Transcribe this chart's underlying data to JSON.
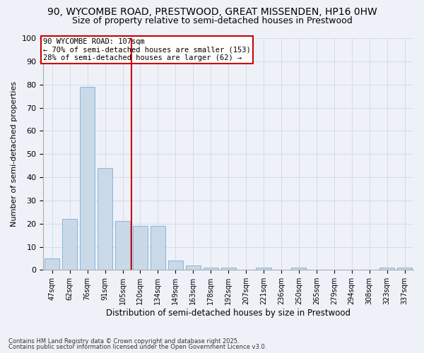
{
  "title1": "90, WYCOMBE ROAD, PRESTWOOD, GREAT MISSENDEN, HP16 0HW",
  "title2": "Size of property relative to semi-detached houses in Prestwood",
  "xlabel": "Distribution of semi-detached houses by size in Prestwood",
  "ylabel": "Number of semi-detached properties",
  "categories": [
    "47sqm",
    "62sqm",
    "76sqm",
    "91sqm",
    "105sqm",
    "120sqm",
    "134sqm",
    "149sqm",
    "163sqm",
    "178sqm",
    "192sqm",
    "207sqm",
    "221sqm",
    "236sqm",
    "250sqm",
    "265sqm",
    "279sqm",
    "294sqm",
    "308sqm",
    "323sqm",
    "337sqm"
  ],
  "values": [
    5,
    22,
    79,
    44,
    21,
    19,
    19,
    4,
    2,
    1,
    1,
    0,
    1,
    0,
    1,
    0,
    0,
    0,
    0,
    1,
    1
  ],
  "bar_color": "#c9d9e8",
  "bar_edge_color": "#7bafd4",
  "vline_color": "#cc0000",
  "vline_x": 4.5,
  "annotation_box_text": "90 WYCOMBE ROAD: 107sqm\n← 70% of semi-detached houses are smaller (153)\n28% of semi-detached houses are larger (62) →",
  "annotation_box_color": "#cc0000",
  "annotation_box_bg": "#ffffff",
  "ylim": [
    0,
    100
  ],
  "yticks": [
    0,
    10,
    20,
    30,
    40,
    50,
    60,
    70,
    80,
    90,
    100
  ],
  "grid_color": "#d0d8e8",
  "background_color": "#eef2f8",
  "footnote1": "Contains HM Land Registry data © Crown copyright and database right 2025.",
  "footnote2": "Contains public sector information licensed under the Open Government Licence v3.0.",
  "title_fontsize": 10,
  "subtitle_fontsize": 9,
  "bar_width": 0.85
}
